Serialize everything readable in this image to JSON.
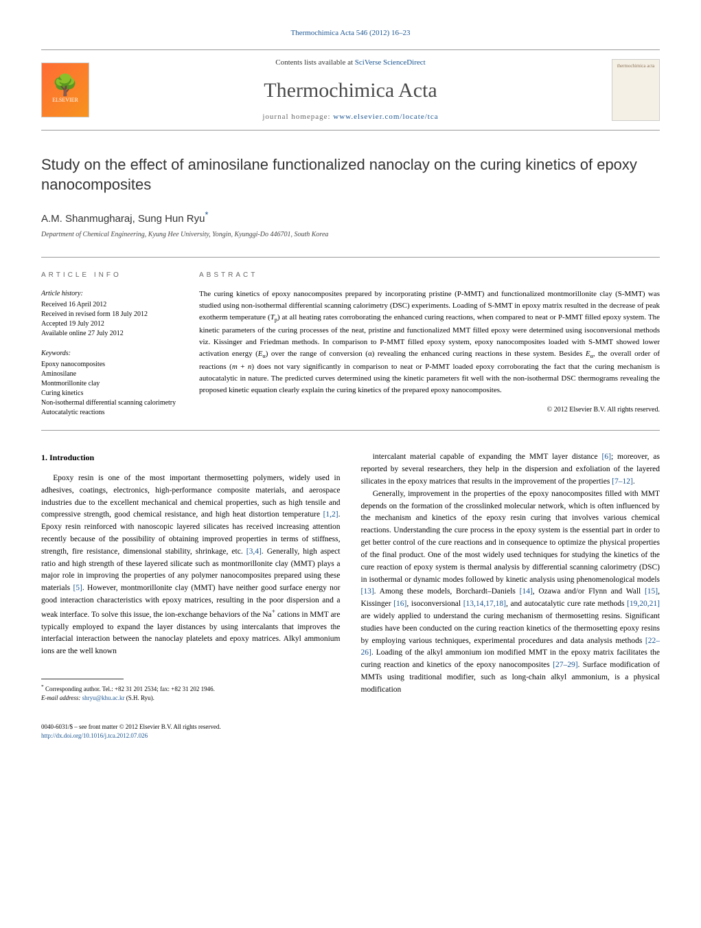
{
  "journal_ref": "Thermochimica Acta 546 (2012) 16–23",
  "header": {
    "contents_prefix": "Contents lists available at ",
    "contents_link": "SciVerse ScienceDirect",
    "journal_name": "Thermochimica Acta",
    "homepage_prefix": "journal homepage: ",
    "homepage_link": "www.elsevier.com/locate/tca",
    "publisher_logo_label": "ELSEVIER",
    "cover_label_top": "thermochimica acta"
  },
  "title": "Study on the effect of aminosilane functionalized nanoclay on the curing kinetics of epoxy nanocomposites",
  "authors": "A.M. Shanmugharaj, Sung Hun Ryu",
  "corr_marker": "*",
  "affiliation": "Department of Chemical Engineering, Kyung Hee University, Yongin, Kyunggi-Do 446701, South Korea",
  "article_info_label": "ARTICLE INFO",
  "abstract_label": "ABSTRACT",
  "history": {
    "label": "Article history:",
    "received": "Received 16 April 2012",
    "revised": "Received in revised form 18 July 2012",
    "accepted": "Accepted 19 July 2012",
    "online": "Available online 27 July 2012"
  },
  "keywords": {
    "label": "Keywords:",
    "items": [
      "Epoxy nanocomposites",
      "Aminosilane",
      "Montmorillonite clay",
      "Curing kinetics",
      "Non-isothermal differential scanning calorimetry",
      "Autocatalytic reactions"
    ]
  },
  "abstract_html": "The curing kinetics of epoxy nanocomposites prepared by incorporating pristine (P-MMT) and functionalized montmorillonite clay (S-MMT) was studied using non-isothermal differential scanning calorimetry (DSC) experiments. Loading of S-MMT in epoxy matrix resulted in the decrease of peak exotherm temperature (<i>T</i><sub>p</sub>) at all heating rates corroborating the enhanced curing reactions, when compared to neat or P-MMT filled epoxy system. The kinetic parameters of the curing processes of the neat, pristine and functionalized MMT filled epoxy were determined using isoconversional methods viz. Kissinger and Friedman methods. In comparison to P-MMT filled epoxy system, epoxy nanocomposites loaded with S-MMT showed lower activation energy (<i>E</i><sub>α</sub>) over the range of conversion (α) revealing the enhanced curing reactions in these system. Besides <i>E</i><sub>α</sub>, the overall order of reactions (<i>m</i> + <i>n</i>) does not vary significantly in comparison to neat or P-MMT loaded epoxy corroborating the fact that the curing mechanism is autocatalytic in nature. The predicted curves determined using the kinetic parameters fit well with the non-isothermal DSC thermograms revealing the proposed kinetic equation clearly explain the curing kinetics of the prepared epoxy nanocomposites.",
  "abstract_copyright": "© 2012 Elsevier B.V. All rights reserved.",
  "intro_heading": "1. Introduction",
  "col_left_html": "Epoxy resin is one of the most important thermosetting polymers, widely used in adhesives, coatings, electronics, high-performance composite materials, and aerospace industries due to the excellent mechanical and chemical properties, such as high tensile and compressive strength, good chemical resistance, and high heat distortion temperature <a class=\"ref-link\">[1,2]</a>. Epoxy resin reinforced with nanoscopic layered silicates has received increasing attention recently because of the possibility of obtaining improved properties in terms of stiffness, strength, fire resistance, dimensional stability, shrinkage, etc. <a class=\"ref-link\">[3,4]</a>. Generally, high aspect ratio and high strength of these layered silicate such as montmorillonite clay (MMT) plays a major role in improving the properties of any polymer nanocomposites prepared using these materials <a class=\"ref-link\">[5]</a>. However, montmorillonite clay (MMT) have neither good surface energy nor good interaction characteristics with epoxy matrices, resulting in the poor dispersion and a weak interface. To solve this issue, the ion-exchange behaviors of the Na<sup>+</sup> cations in MMT are typically employed to expand the layer distances by using intercalants that improves the interfacial interaction between the nanoclay platelets and epoxy matrices. Alkyl ammonium ions are the well known",
  "col_right_html": "intercalant material capable of expanding the MMT layer distance <a class=\"ref-link\">[6]</a>; moreover, as reported by several researchers, they help in the dispersion and exfoliation of the layered silicates in the epoxy matrices that results in the improvement of the properties <a class=\"ref-link\">[7–12]</a>.</p><p>Generally, improvement in the properties of the epoxy nanocomposites filled with MMT depends on the formation of the crosslinked molecular network, which is often influenced by the mechanism and kinetics of the epoxy resin curing that involves various chemical reactions. Understanding the cure process in the epoxy system is the essential part in order to get better control of the cure reactions and in consequence to optimize the physical properties of the final product. One of the most widely used techniques for studying the kinetics of the cure reaction of epoxy system is thermal analysis by differential scanning calorimetry (DSC) in isothermal or dynamic modes followed by kinetic analysis using phenomenological models <a class=\"ref-link\">[13]</a>. Among these models, Borchardt–Daniels <a class=\"ref-link\">[14]</a>, Ozawa and/or Flynn and Wall <a class=\"ref-link\">[15]</a>, Kissinger <a class=\"ref-link\">[16]</a>, isoconversional <a class=\"ref-link\">[13,14,17,18]</a>, and autocatalytic cure rate methods <a class=\"ref-link\">[19,20,21]</a> are widely applied to understand the curing mechanism of thermosetting resins. Significant studies have been conducted on the curing reaction kinetics of the thermosetting epoxy resins by employing various techniques, experimental procedures and data analysis methods <a class=\"ref-link\">[22–26]</a>. Loading of the alkyl ammonium ion modified MMT in the epoxy matrix facilitates the curing reaction and kinetics of the epoxy nanocomposites <a class=\"ref-link\">[27–29]</a>. Surface modification of MMTs using traditional modifier, such as long-chain alkyl ammonium, is a physical modification",
  "footnote": {
    "marker": "*",
    "text": "Corresponding author. Tel.: +82 31 201 2534; fax: +82 31 202 1946.",
    "email_label": "E-mail address: ",
    "email": "shryu@khu.ac.kr",
    "email_suffix": " (S.H. Ryu)."
  },
  "footer": {
    "line1": "0040-6031/$ – see front matter © 2012 Elsevier B.V. All rights reserved.",
    "doi": "http://dx.doi.org/10.1016/j.tca.2012.07.026"
  },
  "colors": {
    "link": "#1a5490",
    "rule": "#999999",
    "text": "#000000",
    "title_gray": "#4a4a4a"
  }
}
